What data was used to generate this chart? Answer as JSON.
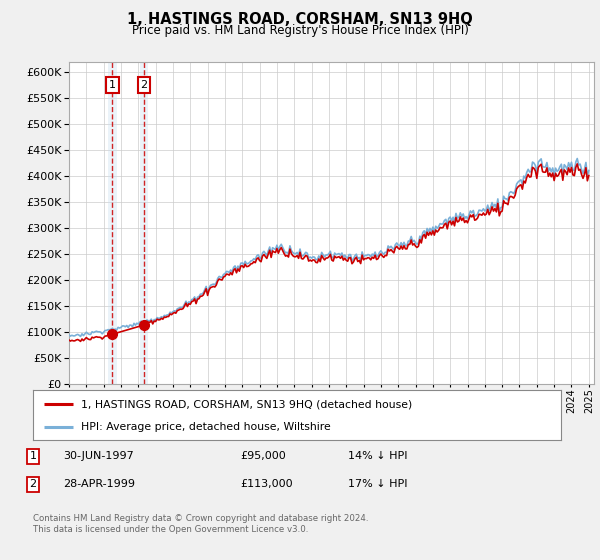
{
  "title": "1, HASTINGS ROAD, CORSHAM, SN13 9HQ",
  "subtitle": "Price paid vs. HM Land Registry's House Price Index (HPI)",
  "legend_label_red": "1, HASTINGS ROAD, CORSHAM, SN13 9HQ (detached house)",
  "legend_label_blue": "HPI: Average price, detached house, Wiltshire",
  "sale1_date": "30-JUN-1997",
  "sale1_price": 95000,
  "sale1_year": 1997.5,
  "sale2_date": "28-APR-1999",
  "sale2_price": 113000,
  "sale2_year": 1999.33,
  "ylim": [
    0,
    620000
  ],
  "xlim_min": 1995.0,
  "xlim_max": 2025.3,
  "hpi_color": "#7ab0d8",
  "price_color": "#cc0000",
  "background_color": "#f0f0f0",
  "plot_bg_color": "#ffffff",
  "grid_color": "#cccccc",
  "vline_shade_color": "#c8ddf0",
  "footer1": "Contains HM Land Registry data © Crown copyright and database right 2024.",
  "footer2": "This data is licensed under the Open Government Licence v3.0."
}
